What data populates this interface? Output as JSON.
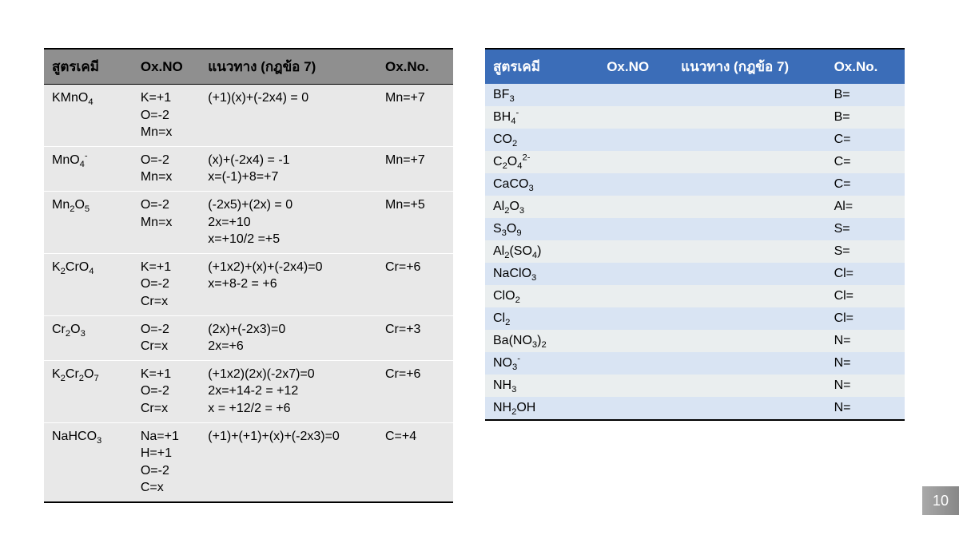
{
  "page_number": "10",
  "headers": {
    "formula": "สูตรเคมี",
    "oxno": "Ox.NO",
    "guide": "แนวทาง (กฎข้อ 7)",
    "oxno2": "Ox.No."
  },
  "left_rows": [
    {
      "formula": "KMnO<sub>4</sub>",
      "oxno": "K=+1<br>O=-2<br>Mn=x",
      "guide": "(+1)(x)+(-2x4) = 0",
      "result": "Mn=+7"
    },
    {
      "formula": "MnO<sub>4</sub><sup>-</sup>",
      "oxno": "O=-2<br>Mn=x",
      "guide": "(x)+(-2x4) = -1<br>x=(-1)+8=+7",
      "result": "Mn=+7"
    },
    {
      "formula": "Mn<sub>2</sub>O<sub>5</sub>",
      "oxno": "O=-2<br>Mn=x",
      "guide": "(-2x5)+(2x) = 0<br>2x=+10<br>x=+10/2 =+5",
      "result": "Mn=+5"
    },
    {
      "formula": "K<sub>2</sub>CrO<sub>4</sub>",
      "oxno": "K=+1<br>O=-2<br>Cr=x",
      "guide": "(+1x2)+(x)+(-2x4)=0<br>x=+8-2 = +6",
      "result": "Cr=+6"
    },
    {
      "formula": "Cr<sub>2</sub>O<sub>3</sub>",
      "oxno": "O=-2<br>Cr=x",
      "guide": "(2x)+(-2x3)=0<br>2x=+6",
      "result": "Cr=+3"
    },
    {
      "formula": "K<sub>2</sub>Cr<sub>2</sub>O<sub>7</sub>",
      "oxno": "K=+1<br>O=-2<br>Cr=x",
      "guide": "(+1x2)(2x)(-2x7)=0<br>2x=+14-2 = +12<br>x = +12/2 = +6",
      "result": "Cr=+6"
    },
    {
      "formula": "NaHCO<sub>3</sub>",
      "oxno": "Na=+1<br>H=+1<br>O=-2<br>C=x",
      "guide": "(+1)+(+1)+(x)+(-2x3)=0",
      "result": "C=+4"
    }
  ],
  "right_rows": [
    {
      "formula": "BF<sub>3</sub>",
      "result": "B="
    },
    {
      "formula": "BH<sub>4</sub><sup>-</sup>",
      "result": "B="
    },
    {
      "formula": "CO<sub>2</sub>",
      "result": "C="
    },
    {
      "formula": "C<sub>2</sub>O<sub>4</sub><sup>2-</sup>",
      "result": "C="
    },
    {
      "formula": "CaCO<sub>3</sub>",
      "result": "C="
    },
    {
      "formula": "Al<sub>2</sub>O<sub>3</sub>",
      "result": "Al="
    },
    {
      "formula": "S<sub>3</sub>O<sub>9</sub>",
      "result": "S="
    },
    {
      "formula": "Al<sub>2</sub>(SO<sub>4</sub>)",
      "result": "S="
    },
    {
      "formula": "NaClO<sub>3</sub>",
      "result": "Cl="
    },
    {
      "formula": "ClO<sub>2</sub>",
      "result": "Cl="
    },
    {
      "formula": "Cl<sub>2</sub>",
      "result": "Cl="
    },
    {
      "formula": "Ba(NO<sub>3</sub>)<sub>2</sub>",
      "result": "N="
    },
    {
      "formula": "NO<sub>3</sub><sup>-</sup>",
      "result": "N="
    },
    {
      "formula": "NH<sub>3</sub>",
      "result": "N="
    },
    {
      "formula": "NH<sub>2</sub>OH",
      "result": "N="
    }
  ]
}
